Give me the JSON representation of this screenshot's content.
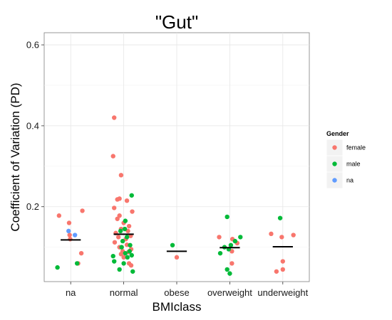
{
  "chart_data": {
    "type": "scatter",
    "title": "\"Gut\"",
    "xlabel": "BMIclass",
    "ylabel": "Coefficient of Variation (PD)",
    "categories": [
      "na",
      "normal",
      "obese",
      "overweight",
      "underweight"
    ],
    "ylim": [
      0.015,
      0.63
    ],
    "yticks": [
      0.2,
      0.4,
      0.6
    ],
    "ytick_labels": [
      "0.2",
      "0.4",
      "0.6"
    ],
    "grid": true,
    "legend": {
      "title": "Gender",
      "position": "right",
      "entries": [
        "female",
        "male",
        "na"
      ]
    },
    "colors": {
      "female": "#f8766d",
      "male": "#00ba38",
      "na": "#619cff",
      "median": "#000000"
    },
    "medians": [
      0.118,
      0.132,
      0.09,
      0.099,
      0.101
    ],
    "series": [
      {
        "name": "female",
        "points": [
          [
            "na",
            0.178,
            -0.22
          ],
          [
            "na",
            0.16,
            -0.03
          ],
          [
            "na",
            0.13,
            -0.02
          ],
          [
            "na",
            0.12,
            -0.01
          ],
          [
            "na",
            0.085,
            0.2
          ],
          [
            "na",
            0.19,
            0.22
          ],
          [
            "na",
            0.06,
            0.14
          ],
          [
            "normal",
            0.42,
            -0.18
          ],
          [
            "normal",
            0.325,
            -0.2
          ],
          [
            "normal",
            0.278,
            -0.05
          ],
          [
            "normal",
            0.218,
            -0.12
          ],
          [
            "normal",
            0.22,
            -0.08
          ],
          [
            "normal",
            0.215,
            0.06
          ],
          [
            "normal",
            0.197,
            -0.18
          ],
          [
            "normal",
            0.188,
            0.16
          ],
          [
            "normal",
            0.178,
            -0.08
          ],
          [
            "normal",
            0.17,
            -0.12
          ],
          [
            "normal",
            0.16,
            0.0
          ],
          [
            "normal",
            0.152,
            0.1
          ],
          [
            "normal",
            0.145,
            -0.05
          ],
          [
            "normal",
            0.14,
            0.08
          ],
          [
            "normal",
            0.135,
            -0.15
          ],
          [
            "normal",
            0.128,
            0.13
          ],
          [
            "normal",
            0.125,
            -0.1
          ],
          [
            "normal",
            0.12,
            0.04
          ],
          [
            "normal",
            0.112,
            -0.17
          ],
          [
            "normal",
            0.106,
            0.06
          ],
          [
            "normal",
            0.1,
            -0.08
          ],
          [
            "normal",
            0.095,
            0.14
          ],
          [
            "normal",
            0.09,
            -0.02
          ],
          [
            "normal",
            0.088,
            0.09
          ],
          [
            "normal",
            0.083,
            -0.05
          ],
          [
            "normal",
            0.075,
            0.0
          ],
          [
            "normal",
            0.06,
            0.1
          ],
          [
            "normal",
            0.055,
            0.14
          ],
          [
            "obese",
            0.075,
            0.0
          ],
          [
            "overweight",
            0.125,
            -0.2
          ],
          [
            "overweight",
            0.12,
            0.05
          ],
          [
            "overweight",
            0.11,
            0.14
          ],
          [
            "overweight",
            0.09,
            0.04
          ],
          [
            "overweight",
            0.06,
            0.04
          ],
          [
            "underweight",
            0.133,
            -0.22
          ],
          [
            "underweight",
            0.125,
            -0.02
          ],
          [
            "underweight",
            0.13,
            0.2
          ],
          [
            "underweight",
            0.065,
            0.0
          ],
          [
            "underweight",
            0.045,
            0.0
          ],
          [
            "underweight",
            0.04,
            -0.12
          ]
        ]
      },
      {
        "name": "male",
        "points": [
          [
            "na",
            0.05,
            -0.25
          ],
          [
            "na",
            0.06,
            0.12
          ],
          [
            "normal",
            0.228,
            0.15
          ],
          [
            "normal",
            0.165,
            0.03
          ],
          [
            "normal",
            0.145,
            0.02
          ],
          [
            "normal",
            0.14,
            -0.06
          ],
          [
            "normal",
            0.125,
            0.06
          ],
          [
            "normal",
            0.115,
            -0.02
          ],
          [
            "normal",
            0.105,
            0.12
          ],
          [
            "normal",
            0.1,
            -0.04
          ],
          [
            "normal",
            0.09,
            0.11
          ],
          [
            "normal",
            0.085,
            0.03
          ],
          [
            "normal",
            0.08,
            0.15
          ],
          [
            "normal",
            0.078,
            -0.2
          ],
          [
            "normal",
            0.075,
            0.07
          ],
          [
            "normal",
            0.065,
            -0.18
          ],
          [
            "normal",
            0.06,
            0.0
          ],
          [
            "normal",
            0.045,
            -0.08
          ],
          [
            "normal",
            0.04,
            0.17
          ],
          [
            "obese",
            0.105,
            -0.08
          ],
          [
            "overweight",
            0.175,
            -0.05
          ],
          [
            "overweight",
            0.125,
            0.2
          ],
          [
            "overweight",
            0.115,
            0.1
          ],
          [
            "overweight",
            0.105,
            0.02
          ],
          [
            "overweight",
            0.1,
            -0.1
          ],
          [
            "overweight",
            0.095,
            -0.02
          ],
          [
            "overweight",
            0.085,
            -0.18
          ],
          [
            "overweight",
            0.045,
            -0.05
          ],
          [
            "overweight",
            0.035,
            0.0
          ],
          [
            "underweight",
            0.172,
            -0.05
          ]
        ]
      },
      {
        "name": "na",
        "points": [
          [
            "na",
            0.14,
            -0.04
          ],
          [
            "na",
            0.13,
            0.08
          ]
        ]
      }
    ]
  }
}
